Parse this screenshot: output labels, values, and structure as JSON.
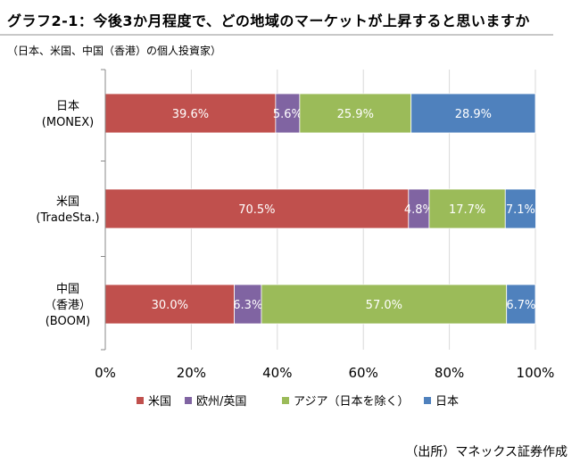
{
  "header": {
    "title": "グラフ2‑1：今後3か月程度で、どの地域のマーケットが上昇すると思いますか",
    "subtitle": "（日本、米国、中国（香港）の個人投資家）"
  },
  "footer": {
    "source": "（出所）マネックス証券作成"
  },
  "chart_data": {
    "type": "bar",
    "orientation": "horizontal",
    "stacked": true,
    "categories": [
      [
        "日本",
        "(MONEX)"
      ],
      [
        "米国",
        "(TradeSta.)"
      ],
      [
        "中国",
        "（香港）",
        "(BOOM)"
      ]
    ],
    "series": [
      {
        "name": "米国",
        "values": [
          39.6,
          70.5,
          30.0
        ],
        "labels": [
          "39.6%",
          "70.5%",
          "30.0%"
        ],
        "color": "#c0504d"
      },
      {
        "name": "欧州/英国",
        "values": [
          5.6,
          4.8,
          6.3
        ],
        "labels": [
          "5.6%",
          "4.8%",
          "6.3%"
        ],
        "color": "#8064a2"
      },
      {
        "name": "アジア（日本を除く）",
        "values": [
          25.9,
          17.7,
          57.0
        ],
        "labels": [
          "25.9%",
          "17.7%",
          "57.0%"
        ],
        "color": "#9bbb59"
      },
      {
        "name": "日本",
        "values": [
          28.9,
          7.1,
          6.7
        ],
        "labels": [
          "28.9%",
          "7.1%",
          "6.7%"
        ],
        "color": "#4f81bd"
      }
    ],
    "xlim": [
      0,
      100
    ],
    "xticks": [
      "0%",
      "20%",
      "40%",
      "60%",
      "80%",
      "100%"
    ],
    "grid": true,
    "legend_position": "bottom"
  }
}
